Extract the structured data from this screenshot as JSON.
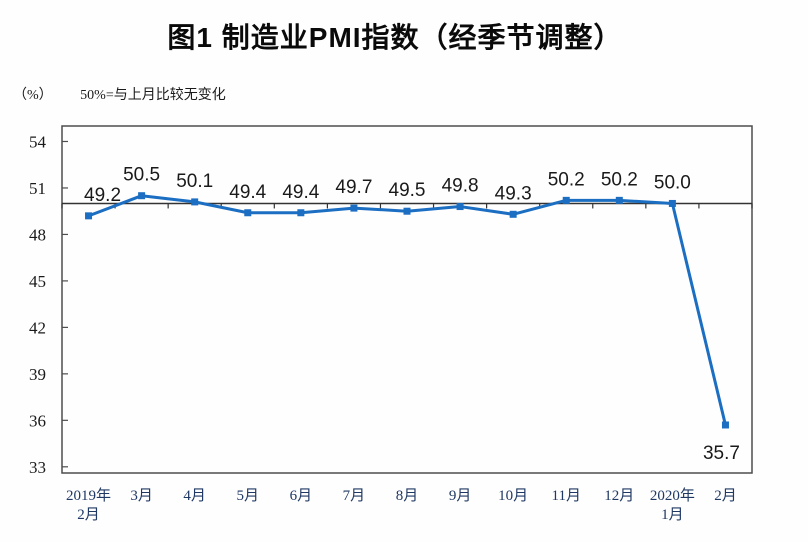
{
  "title": "图1 制造业PMI指数（经季节调整）",
  "y_axis_unit": "（%）",
  "note": "50%=与上月比较无变化",
  "colors": {
    "series_line": "#1B6EC2",
    "reference_line": "#333333",
    "plot_border": "#4D4D4D",
    "axis_text": "#1A1A1A",
    "data_label_text": "#1A1A1A",
    "x_axis_text": "#1F3864"
  },
  "chart_data": {
    "type": "line",
    "title": "图1 制造业PMI指数（经季节调整）",
    "ylabel": "（%）",
    "annotation": "50%=与上月比较无变化",
    "categories": [
      [
        "2019年",
        "2月"
      ],
      [
        "3月"
      ],
      [
        "4月"
      ],
      [
        "5月"
      ],
      [
        "6月"
      ],
      [
        "7月"
      ],
      [
        "8月"
      ],
      [
        "9月"
      ],
      [
        "10月"
      ],
      [
        "11月"
      ],
      [
        "12月"
      ],
      [
        "2020年",
        "1月"
      ],
      [
        "2月"
      ]
    ],
    "values": [
      49.2,
      50.5,
      50.1,
      49.4,
      49.4,
      49.7,
      49.5,
      49.8,
      49.3,
      50.2,
      50.2,
      50.0,
      35.7
    ],
    "data_labels": [
      "49.2",
      "50.5",
      "50.1",
      "49.4",
      "49.4",
      "49.7",
      "49.5",
      "49.8",
      "49.3",
      "50.2",
      "50.2",
      "50.0",
      "35.7"
    ],
    "y_ticks": [
      54,
      51,
      48,
      45,
      42,
      39,
      36,
      33
    ],
    "ylim": [
      32.6,
      55
    ],
    "reference_line": 50,
    "grid": false,
    "legend": "none",
    "marker": "square"
  }
}
